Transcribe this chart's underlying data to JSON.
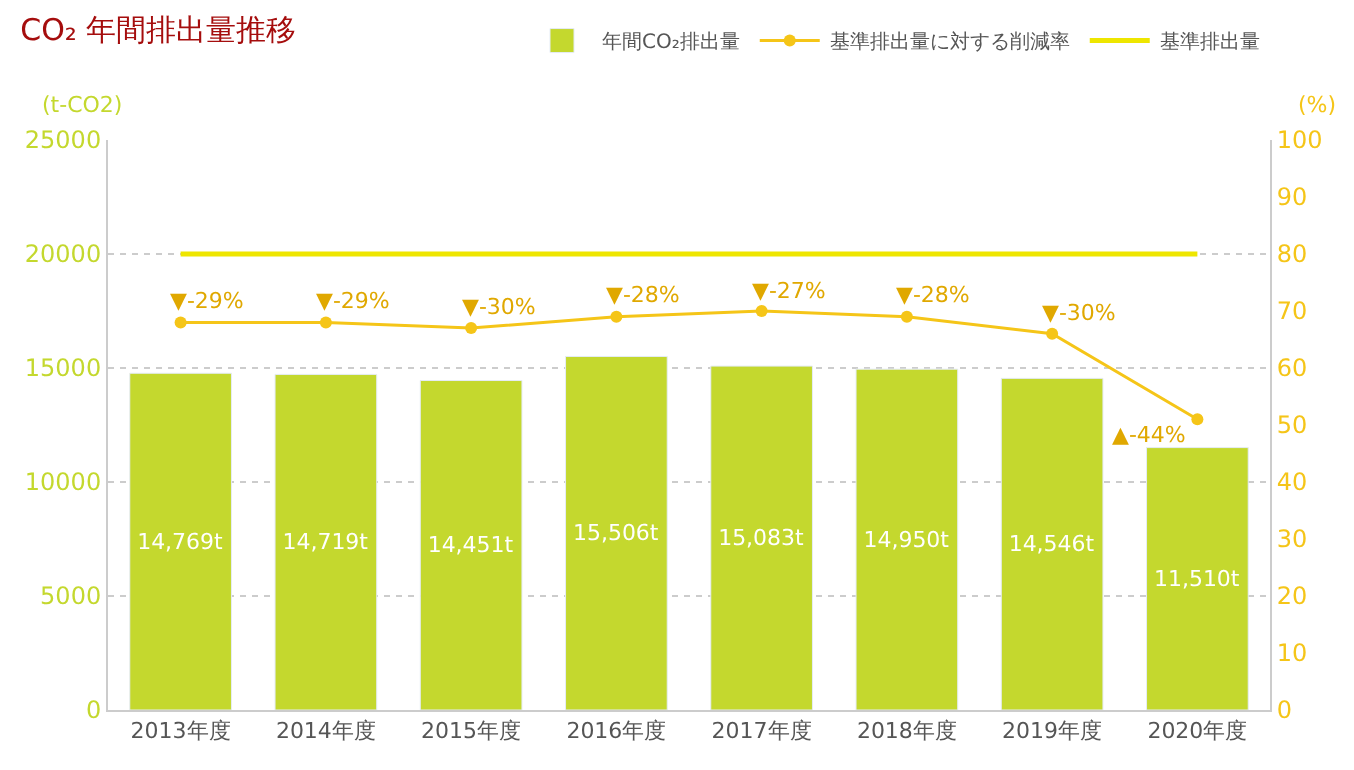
{
  "chart_data": {
    "type": "bar",
    "title": "CO₂ 年間排出量推移",
    "categories": [
      "2013年度",
      "2014年度",
      "2015年度",
      "2016年度",
      "2017年度",
      "2018年度",
      "2019年度",
      "2020年度"
    ],
    "series": [
      {
        "name": "年間CO₂排出量",
        "color": "#c4d82e",
        "values": [
          14769,
          14719,
          14451,
          15506,
          15083,
          14950,
          14546,
          11510
        ],
        "value_labels": [
          "14,769t",
          "14,719t",
          "14,451t",
          "15,506t",
          "15,083t",
          "14,950t",
          "14,546t",
          "11,510t"
        ]
      },
      {
        "name": "基準排出量に対する削減率",
        "type": "line",
        "axis": "y2",
        "color": "#f5c518",
        "marker": "circle",
        "values": [
          68,
          68,
          67,
          69,
          70,
          69,
          66,
          51
        ]
      },
      {
        "name": "基準排出量",
        "type": "line",
        "axis": "y2",
        "color": "#eee600",
        "marker": "none",
        "values": [
          80,
          80,
          80,
          80,
          80,
          80,
          80,
          80
        ]
      }
    ],
    "ylabel": "(t-CO2)",
    "y2label": "(%)",
    "ylim": [
      0,
      25000
    ],
    "yticks": [
      0,
      5000,
      10000,
      15000,
      20000,
      25000
    ],
    "y2lim": [
      0,
      100
    ],
    "y2ticks": [
      0,
      10,
      20,
      30,
      40,
      50,
      60,
      70,
      80,
      90,
      100
    ],
    "annotations": [
      "▼-29%",
      "▼-29%",
      "▼-30%",
      "▼-28%",
      "▼-27%",
      "▼-28%",
      "▼-30%",
      "▲-44%"
    ],
    "grid": "y",
    "legend": "top right"
  }
}
